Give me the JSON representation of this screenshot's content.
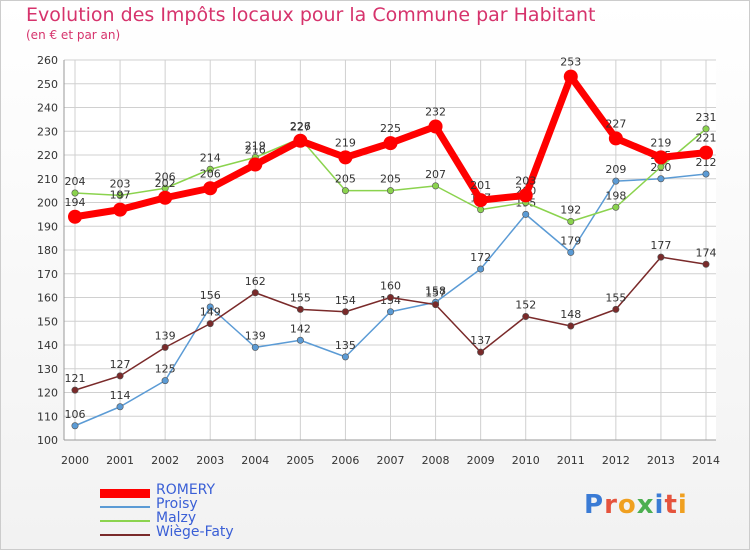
{
  "title": "Evolution des Impôts locaux pour la Commune par Habitant",
  "subtitle": "(en € et par an)",
  "logo": "Proxiti",
  "colors": {
    "title": "#d6336c",
    "legend_text": "#3a5fd6",
    "axis_text": "#333333",
    "grid": "#d0d0d0"
  },
  "chart_data": {
    "type": "line",
    "x": [
      "2000",
      "2001",
      "2002",
      "2003",
      "2004",
      "2005",
      "2006",
      "2007",
      "2008",
      "2009",
      "2010",
      "2011",
      "2012",
      "2013",
      "2014"
    ],
    "ylim": [
      100,
      260
    ],
    "yticks": [
      100,
      110,
      120,
      130,
      140,
      150,
      160,
      170,
      180,
      190,
      200,
      210,
      220,
      230,
      240,
      250,
      260
    ],
    "grid": true,
    "legend_position": "bottom-left",
    "series": [
      {
        "name": "ROMERY",
        "color": "#ff0000",
        "values": [
          194,
          197,
          202,
          206,
          216,
          226,
          219,
          225,
          232,
          201,
          203,
          253,
          227,
          219,
          221
        ]
      },
      {
        "name": "Proisy",
        "color": "#5b9bd5",
        "values": [
          106,
          114,
          125,
          156,
          139,
          142,
          135,
          154,
          158,
          172,
          195,
          179,
          209,
          210,
          212
        ]
      },
      {
        "name": "Malzy",
        "color": "#8bd34e",
        "values": [
          204,
          203,
          206,
          214,
          219,
          227,
          205,
          205,
          207,
          197,
          200,
          192,
          198,
          215,
          231
        ]
      },
      {
        "name": "Wiège-Faty",
        "color": "#7a2a2a",
        "values": [
          121,
          127,
          139,
          149,
          162,
          155,
          154,
          160,
          157,
          137,
          152,
          148,
          155,
          177,
          174
        ]
      }
    ]
  }
}
